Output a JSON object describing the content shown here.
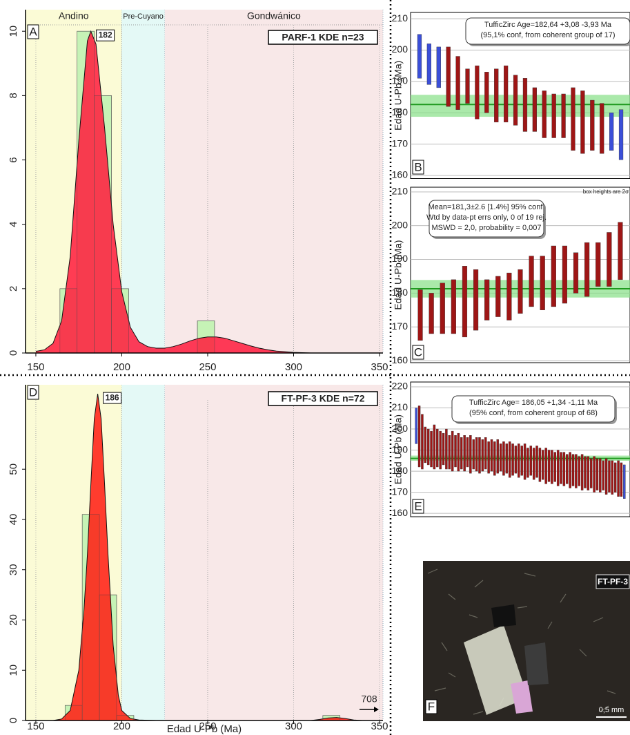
{
  "chart_data": [
    {
      "type": "histogram",
      "panel": "A",
      "peak": 182,
      "label": "PARF-1 KDE n=23",
      "bins": [
        164,
        174,
        184,
        194,
        204,
        214,
        224,
        234,
        244,
        254
      ],
      "counts": [
        2,
        10,
        8,
        2,
        0,
        0,
        0,
        0,
        1
      ],
      "kde": {
        "x": [
          150,
          155,
          160,
          165,
          170,
          175,
          180,
          182,
          185,
          190,
          195,
          200,
          205,
          210,
          215,
          220,
          225,
          230,
          235,
          240,
          245,
          250,
          255,
          260,
          265,
          270,
          275,
          280,
          285,
          290,
          295,
          300,
          305,
          310
        ],
        "y": [
          0.05,
          0.1,
          0.3,
          1.0,
          3.0,
          6.6,
          9.7,
          10.0,
          9.6,
          7.0,
          4.0,
          1.9,
          0.8,
          0.35,
          0.2,
          0.15,
          0.15,
          0.2,
          0.28,
          0.38,
          0.46,
          0.5,
          0.5,
          0.46,
          0.38,
          0.3,
          0.22,
          0.15,
          0.1,
          0.06,
          0.04,
          0.02,
          0.01,
          0
        ]
      },
      "hist_color": "#c6f3b6",
      "kde_color": "#ff1a3c",
      "regions": [
        {
          "name": "Andino",
          "range": [
            144,
            200
          ],
          "color": "#fbfbd6"
        },
        {
          "name": "Pre-Cuyano",
          "range": [
            200,
            225
          ],
          "color": "#e4f9f6"
        },
        {
          "name": "Gondwánico",
          "range": [
            225,
            352
          ],
          "color": "#f8e8e8"
        }
      ],
      "xlim": [
        144,
        352
      ],
      "ylim": [
        0,
        10.67
      ],
      "xticks": [
        150,
        200,
        250,
        300,
        350
      ],
      "yticks": [
        0,
        2,
        4,
        6,
        8,
        10
      ]
    },
    {
      "type": "errorbar",
      "panel": "B",
      "ylabel": "Edad U-Pb (Ma)",
      "low": [
        191,
        189,
        188,
        182,
        181,
        183,
        178,
        180,
        177,
        177,
        176,
        174,
        174,
        172,
        172,
        172,
        168,
        167,
        168,
        167,
        168,
        165
      ],
      "high": [
        205,
        202,
        201,
        201,
        198,
        194,
        195,
        193,
        194,
        195,
        192,
        191,
        188,
        187,
        186,
        186,
        188,
        187,
        184,
        183,
        180,
        181
      ],
      "rejected": [
        0,
        1,
        2,
        20,
        21
      ],
      "color": "#9e1616",
      "reject_color": "#3b4fd8",
      "mean": 182.64,
      "band": [
        178.71,
        185.72
      ],
      "annotation": [
        "TufficZirc Age=182,64 +3,08 -3,93 Ma",
        "(95,1% conf, from coherent group of 17)"
      ],
      "ylim": [
        159,
        212
      ],
      "yticks": [
        160,
        170,
        180,
        190,
        200,
        210
      ]
    },
    {
      "type": "errorbar",
      "panel": "C",
      "ylabel": "Edad U-Pb (Ma)",
      "low": [
        166,
        168,
        168,
        168,
        167,
        169,
        172,
        173,
        172,
        174,
        176,
        175,
        176,
        177,
        180,
        179,
        182,
        182,
        184
      ],
      "high": [
        181,
        180,
        183,
        184,
        188,
        187,
        184,
        185,
        186,
        187,
        191,
        191,
        194,
        194,
        192,
        195,
        195,
        198,
        201
      ],
      "rejected": [],
      "color": "#9e1616",
      "reject_color": "#3b4fd8",
      "mean": 181.3,
      "band": [
        178.7,
        183.9
      ],
      "annotation": [
        "Mean=181,3±2.6 [1.4%] 95% conf.",
        "Wtd by data-pt errs only, 0 of 19 rej.",
        "MSWD = 2,0, probability = 0,007"
      ],
      "note": "box heights are 2σ",
      "ylim": [
        159.4,
        211.4
      ],
      "yticks": [
        160,
        170,
        180,
        190,
        200,
        210
      ]
    },
    {
      "type": "histogram",
      "panel": "D",
      "peak": 186,
      "label": "FT-PF-3 KDE n=72",
      "offscale": 708,
      "xlabel": "Edad U-Pb (Ma)",
      "bins": [
        167,
        177,
        187,
        197,
        207,
        217,
        227,
        237,
        247,
        257,
        267,
        277,
        287,
        297,
        307,
        317,
        327
      ],
      "counts": [
        3,
        41,
        25,
        1,
        0,
        0,
        0,
        0,
        0,
        0,
        0,
        0,
        0,
        0,
        0,
        1
      ],
      "kde": {
        "x": [
          160,
          165,
          170,
          175,
          178,
          180,
          182,
          184,
          186,
          188,
          190,
          192,
          195,
          198,
          200,
          205,
          210,
          220,
          310,
          315,
          320,
          325,
          330,
          335,
          340
        ],
        "y": [
          0,
          0.3,
          2,
          10,
          22,
          33,
          47,
          60,
          65,
          60,
          47,
          33,
          15,
          5,
          2,
          0.4,
          0.1,
          0,
          0,
          0.2,
          0.5,
          0.6,
          0.4,
          0.1,
          0
        ]
      },
      "hist_color": "#c6f3b6",
      "kde_color": "#ff1a10",
      "regions": [
        {
          "range": [
            144,
            200
          ],
          "color": "#fbfbd6"
        },
        {
          "range": [
            200,
            225
          ],
          "color": "#e4f9f6"
        },
        {
          "range": [
            225,
            352
          ],
          "color": "#f8e8e8"
        }
      ],
      "xlim": [
        144,
        352
      ],
      "ylim": [
        0,
        66.8
      ],
      "xticks": [
        150,
        200,
        250,
        300,
        350
      ],
      "yticks": [
        0,
        10,
        20,
        30,
        40,
        50
      ]
    },
    {
      "type": "errorbar",
      "panel": "E",
      "ylabel": "Edad U-Pb (Ma)",
      "low": [
        193,
        182,
        181,
        184,
        183,
        182,
        181,
        182,
        181,
        183,
        181,
        181,
        180,
        182,
        180,
        181,
        180,
        182,
        179,
        181,
        180,
        179,
        180,
        181,
        179,
        180,
        178,
        179,
        180,
        178,
        179,
        177,
        178,
        179,
        177,
        178,
        176,
        177,
        178,
        176,
        177,
        175,
        176,
        174,
        175,
        174,
        175,
        173,
        174,
        173,
        174,
        172,
        173,
        172,
        173,
        171,
        172,
        171,
        172,
        170,
        171,
        170,
        171,
        169,
        170,
        169,
        170,
        168,
        168,
        167
      ],
      "high": [
        210,
        211,
        207,
        201,
        200,
        199,
        202,
        200,
        199,
        198,
        200,
        197,
        199,
        197,
        198,
        196,
        197,
        196,
        197,
        195,
        196,
        196,
        195,
        196,
        194,
        195,
        194,
        195,
        193,
        194,
        193,
        194,
        193,
        192,
        193,
        192,
        193,
        191,
        192,
        191,
        192,
        191,
        190,
        191,
        190,
        190,
        189,
        190,
        189,
        189,
        188,
        189,
        188,
        188,
        187,
        188,
        187,
        187,
        186,
        187,
        186,
        186,
        185,
        186,
        185,
        185,
        184,
        185,
        184,
        183
      ],
      "rejected": [
        0,
        69
      ],
      "color": "#9e1616",
      "reject_color": "#3b4fd8",
      "mean": 186.05,
      "band": [
        184.94,
        187.39
      ],
      "annotation": [
        "TufficZirc Age= 186,05 +1,34 -1,11 Ma",
        "(95% conf, from coherent group of 68)"
      ],
      "ylim": [
        158.4,
        222.3
      ],
      "yticks": [
        160,
        170,
        180,
        190,
        200,
        210,
        220
      ]
    }
  ],
  "photo": {
    "panel": "F",
    "sample": "FT-PF-3",
    "scale": "0,5 mm"
  }
}
